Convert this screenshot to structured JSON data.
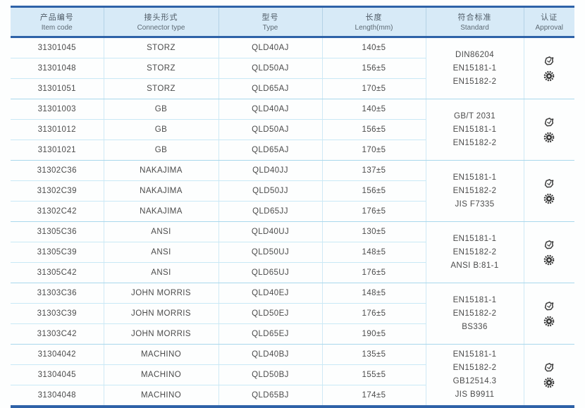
{
  "header": {
    "columns": [
      {
        "zh": "产品编号",
        "en": "Item code"
      },
      {
        "zh": "接头形式",
        "en": "Connector type"
      },
      {
        "zh": "型号",
        "en": "Type"
      },
      {
        "zh": "长度",
        "en": "Length(mm)"
      },
      {
        "zh": "符合标准",
        "en": "Standard"
      },
      {
        "zh": "认证",
        "en": "Approval"
      }
    ]
  },
  "approval_icons": [
    {
      "name": "stamp-badge-icon"
    },
    {
      "name": "gear-seal-icon"
    }
  ],
  "colors": {
    "header_bg": "#d7eaf7",
    "border_blue": "#2e62a8",
    "row_line": "#c9e9f6",
    "group_line": "#a9d8ec",
    "text": "#4b4b4b"
  },
  "groups": [
    {
      "rows": [
        {
          "item_code": "31301045",
          "connector": "STORZ",
          "type": "QLD40AJ",
          "length": "140±5"
        },
        {
          "item_code": "31301048",
          "connector": "STORZ",
          "type": "QLD50AJ",
          "length": "156±5"
        },
        {
          "item_code": "31301051",
          "connector": "STORZ",
          "type": "QLD65AJ",
          "length": "170±5"
        }
      ],
      "standards": [
        "DIN86204",
        "EN15181-1",
        "EN15182-2"
      ]
    },
    {
      "rows": [
        {
          "item_code": "31301003",
          "connector": "GB",
          "type": "QLD40AJ",
          "length": "140±5"
        },
        {
          "item_code": "31301012",
          "connector": "GB",
          "type": "QLD50AJ",
          "length": "156±5"
        },
        {
          "item_code": "31301021",
          "connector": "GB",
          "type": "QLD65AJ",
          "length": "170±5"
        }
      ],
      "standards": [
        "GB/T 2031",
        "EN15181-1",
        "EN15182-2"
      ]
    },
    {
      "rows": [
        {
          "item_code": "31302C36",
          "connector": "NAKAJIMA",
          "type": "QLD40JJ",
          "length": "137±5"
        },
        {
          "item_code": "31302C39",
          "connector": "NAKAJIMA",
          "type": "QLD50JJ",
          "length": "156±5"
        },
        {
          "item_code": "31302C42",
          "connector": "NAKAJIMA",
          "type": "QLD65JJ",
          "length": "176±5"
        }
      ],
      "standards": [
        "EN15181-1",
        "EN15182-2",
        "JIS F7335"
      ]
    },
    {
      "rows": [
        {
          "item_code": "31305C36",
          "connector": "ANSI",
          "type": "QLD40UJ",
          "length": "130±5"
        },
        {
          "item_code": "31305C39",
          "connector": "ANSI",
          "type": "QLD50UJ",
          "length": "148±5"
        },
        {
          "item_code": "31305C42",
          "connector": "ANSI",
          "type": "QLD65UJ",
          "length": "176±5"
        }
      ],
      "standards": [
        "EN15181-1",
        "EN15182-2",
        "ANSI B:81-1"
      ]
    },
    {
      "rows": [
        {
          "item_code": "31303C36",
          "connector": "JOHN MORRIS",
          "type": "QLD40EJ",
          "length": "148±5"
        },
        {
          "item_code": "31303C39",
          "connector": "JOHN MORRIS",
          "type": "QLD50EJ",
          "length": "176±5"
        },
        {
          "item_code": "31303C42",
          "connector": "JOHN MORRIS",
          "type": "QLD65EJ",
          "length": "190±5"
        }
      ],
      "standards": [
        "EN15181-1",
        "EN15182-2",
        "BS336"
      ]
    },
    {
      "rows": [
        {
          "item_code": "31304042",
          "connector": "MACHINO",
          "type": "QLD40BJ",
          "length": "135±5"
        },
        {
          "item_code": "31304045",
          "connector": "MACHINO",
          "type": "QLD50BJ",
          "length": "155±5"
        },
        {
          "item_code": "31304048",
          "connector": "MACHINO",
          "type": "QLD65BJ",
          "length": "174±5"
        }
      ],
      "standards": [
        "EN15181-1",
        "EN15182-2",
        "GB12514.3",
        "JIS B9911"
      ]
    }
  ]
}
